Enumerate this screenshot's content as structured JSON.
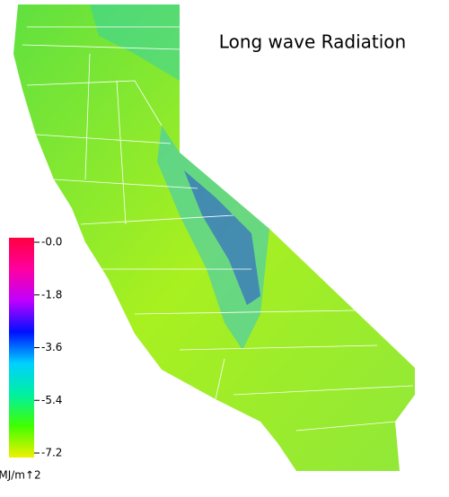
{
  "title": "Long wave Radiation",
  "colorbar": {
    "lim": [
      -7.2,
      0
    ],
    "ticks": [
      {
        "value": 0,
        "label": "-0.0"
      },
      -1.8,
      -3.6,
      -5.4,
      -7.2
    ],
    "colors": [
      "#f0f000",
      "#40ff00",
      "#00f0a0",
      "#00d0ff",
      "#0010ff",
      "#c000ff",
      "#ff00a0",
      "#ff0040"
    ],
    "unit": "MJ/m↑2"
  }
}
